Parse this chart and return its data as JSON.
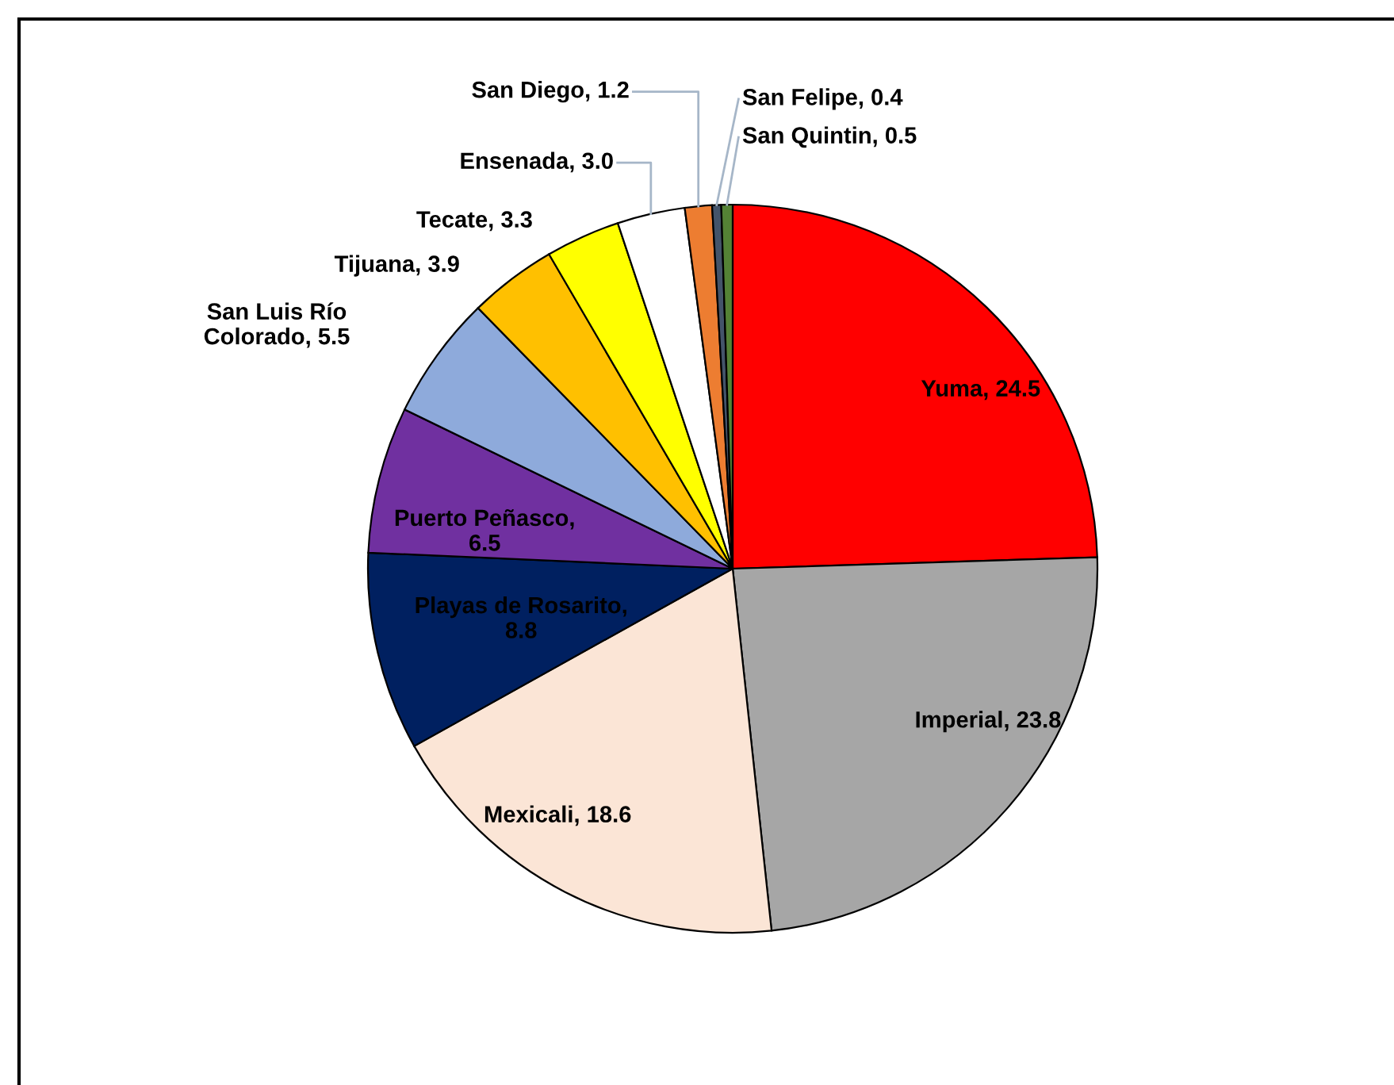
{
  "chart_data": {
    "type": "pie",
    "categories": [
      "Yuma",
      "Imperial",
      "Mexicali",
      "Playas de Rosarito",
      "Puerto Peñasco",
      "San Luis Río Colorado",
      "Tijuana",
      "Tecate",
      "Ensenada",
      "San Diego",
      "San Felipe",
      "San Quintin"
    ],
    "values": [
      24.5,
      23.8,
      18.6,
      8.8,
      6.5,
      5.5,
      3.9,
      3.3,
      3.0,
      1.2,
      0.4,
      0.5
    ],
    "colors": [
      "#ff0000",
      "#a6a6a6",
      "#fbe5d6",
      "#002060",
      "#7030a0",
      "#8eaadb",
      "#ffc000",
      "#ffff00",
      "#ffffff",
      "#ed7d31",
      "#44546a",
      "#548235"
    ],
    "value_labels": [
      ", 24.5",
      ", 23.8",
      ", 18.6",
      ",\n8.8",
      ",\n6.5",
      ", 5.5",
      ", 3.9",
      ", 3.3",
      ", 3.0",
      ", 1.2",
      ", 0.4",
      ", 0.5"
    ],
    "legend": false
  }
}
